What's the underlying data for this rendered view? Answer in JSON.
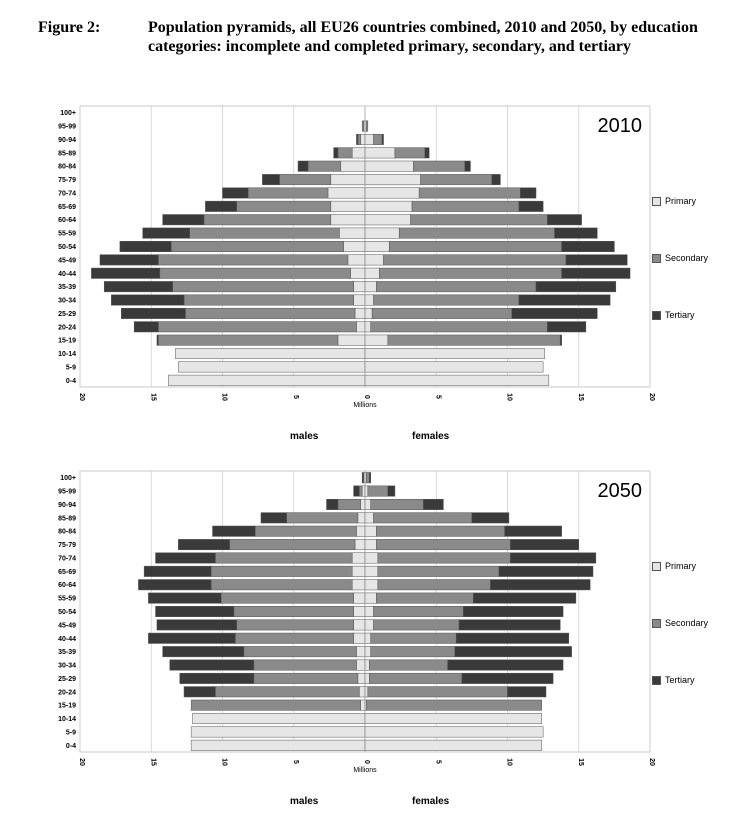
{
  "figure": {
    "label": "Figure 2:",
    "title": "Population pyramids, all EU26 countries combined, 2010 and 2050, by education categories: incomplete and completed primary, secondary, and tertiary"
  },
  "colors": {
    "primary": "#e6e6e6",
    "secondary": "#8a8a8a",
    "tertiary": "#3a3a3a",
    "grid": "#d0d0d0"
  },
  "legend": [
    "Primary",
    "Secondary",
    "Tertiary"
  ],
  "sex_labels": {
    "male": "males",
    "female": "females"
  },
  "chart_data": [
    {
      "type": "bar",
      "subtype": "population-pyramid",
      "title": "2010",
      "xlabel": "Millions",
      "xlim": [
        -20,
        20
      ],
      "xticks": [
        "20",
        "15",
        "10",
        "5",
        "0",
        "5",
        "10",
        "15",
        "20"
      ],
      "categories": [
        "0-4",
        "5-9",
        "10-14",
        "15-19",
        "20-24",
        "25-29",
        "30-34",
        "35-39",
        "40-44",
        "45-49",
        "50-54",
        "55-59",
        "60-64",
        "65-69",
        "70-74",
        "75-79",
        "80-84",
        "85-89",
        "90-94",
        "95-99",
        "100+"
      ],
      "series": [
        {
          "name": "Primary",
          "males": [
            13.8,
            13.1,
            13.3,
            1.9,
            0.6,
            0.7,
            0.8,
            0.8,
            1.0,
            1.2,
            1.5,
            1.8,
            2.4,
            2.4,
            2.6,
            2.4,
            1.7,
            0.9,
            0.3,
            0.1,
            0.0
          ],
          "females": [
            12.9,
            12.5,
            12.6,
            1.6,
            0.4,
            0.5,
            0.6,
            0.8,
            1.0,
            1.3,
            1.7,
            2.4,
            3.2,
            3.3,
            3.8,
            3.9,
            3.4,
            2.1,
            0.6,
            0.1,
            0.0
          ]
        },
        {
          "name": "Secondary",
          "males": [
            0.0,
            0.0,
            0.0,
            12.6,
            13.9,
            11.9,
            11.9,
            12.7,
            13.4,
            13.3,
            12.1,
            10.5,
            8.9,
            6.6,
            5.6,
            3.6,
            2.3,
            1.0,
            0.2,
            0.1,
            0.0
          ],
          "females": [
            0.0,
            0.0,
            0.0,
            12.1,
            12.4,
            9.8,
            10.2,
            11.2,
            12.8,
            12.8,
            12.1,
            10.9,
            9.6,
            7.5,
            7.1,
            5.0,
            3.6,
            2.1,
            0.6,
            0.1,
            0.0
          ]
        },
        {
          "name": "Tertiary",
          "males": [
            0.0,
            0.0,
            0.0,
            0.1,
            1.7,
            4.5,
            5.1,
            4.8,
            4.8,
            4.1,
            3.6,
            3.3,
            2.9,
            2.2,
            1.8,
            1.2,
            0.7,
            0.3,
            0.1,
            0.0,
            0.0
          ],
          "females": [
            0.0,
            0.0,
            0.0,
            0.1,
            2.7,
            6.0,
            6.4,
            5.6,
            4.8,
            4.3,
            3.7,
            3.0,
            2.4,
            1.7,
            1.1,
            0.6,
            0.4,
            0.3,
            0.1,
            0.0,
            0.0
          ]
        }
      ]
    },
    {
      "type": "bar",
      "subtype": "population-pyramid",
      "title": "2050",
      "xlabel": "Millions",
      "xlim": [
        -20,
        20
      ],
      "xticks": [
        "20",
        "15",
        "10",
        "5",
        "0",
        "5",
        "10",
        "15",
        "20"
      ],
      "categories": [
        "0-4",
        "5-9",
        "10-14",
        "15-19",
        "20-24",
        "25-29",
        "30-34",
        "35-39",
        "40-44",
        "45-49",
        "50-54",
        "55-59",
        "60-64",
        "65-69",
        "70-74",
        "75-79",
        "80-84",
        "85-89",
        "90-94",
        "95-99",
        "100+"
      ],
      "series": [
        {
          "name": "Primary",
          "males": [
            12.2,
            12.2,
            12.1,
            0.3,
            0.4,
            0.5,
            0.6,
            0.6,
            0.8,
            0.8,
            0.8,
            0.8,
            0.9,
            0.9,
            0.9,
            0.7,
            0.6,
            0.5,
            0.3,
            0.2,
            0.1
          ],
          "females": [
            12.4,
            12.5,
            12.4,
            0.1,
            0.2,
            0.3,
            0.3,
            0.4,
            0.4,
            0.6,
            0.6,
            0.8,
            0.9,
            0.9,
            0.9,
            0.8,
            0.8,
            0.6,
            0.4,
            0.2,
            0.1
          ]
        },
        {
          "name": "Secondary",
          "males": [
            0.0,
            0.0,
            0.0,
            11.9,
            10.1,
            7.3,
            7.2,
            7.9,
            8.3,
            8.2,
            8.4,
            9.3,
            9.9,
            9.9,
            9.6,
            8.8,
            7.1,
            5.0,
            1.6,
            0.2,
            0.0
          ],
          "females": [
            0.0,
            0.0,
            0.0,
            12.3,
            9.8,
            6.5,
            5.5,
            5.9,
            6.0,
            6.0,
            6.3,
            6.8,
            7.9,
            8.5,
            9.3,
            9.4,
            9.0,
            6.9,
            3.7,
            1.4,
            0.2
          ]
        },
        {
          "name": "Tertiary",
          "males": [
            0.0,
            0.0,
            0.0,
            0.0,
            2.2,
            5.2,
            5.9,
            5.7,
            6.1,
            5.6,
            5.5,
            5.1,
            5.1,
            4.7,
            4.2,
            3.6,
            3.0,
            1.8,
            0.8,
            0.4,
            0.1
          ],
          "females": [
            0.0,
            0.0,
            0.0,
            0.0,
            2.7,
            6.4,
            8.1,
            8.2,
            7.9,
            7.1,
            7.0,
            7.2,
            7.0,
            6.6,
            6.0,
            4.8,
            4.0,
            2.6,
            1.4,
            0.5,
            0.1
          ]
        }
      ]
    }
  ]
}
